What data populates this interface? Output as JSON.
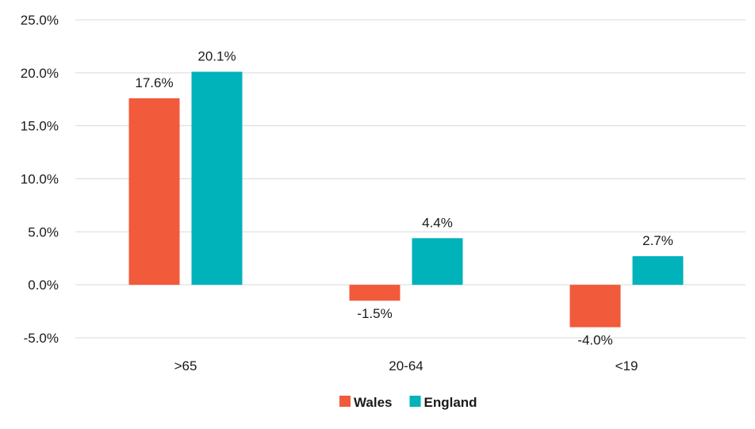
{
  "chart_data": {
    "type": "bar",
    "categories": [
      ">65",
      "20-64",
      "<19"
    ],
    "series": [
      {
        "name": "Wales",
        "values": [
          17.6,
          -1.5,
          -4.0
        ],
        "labels": [
          "17.6%",
          "-1.5%",
          "-4.0%"
        ],
        "color": "#F15A3A"
      },
      {
        "name": "England",
        "values": [
          20.1,
          4.4,
          2.7
        ],
        "labels": [
          "20.1%",
          "4.4%",
          "2.7%"
        ],
        "color": "#00B2BA"
      }
    ],
    "ylim": [
      -5,
      25
    ],
    "yticks": [
      -5,
      0,
      5,
      10,
      15,
      20,
      25
    ],
    "ytick_labels": [
      "-5.0%",
      "0.0%",
      "5.0%",
      "10.0%",
      "15.0%",
      "20.0%",
      "25.0%"
    ],
    "grid": true,
    "legend_position": "bottom-center",
    "title": "",
    "xlabel": "",
    "ylabel": ""
  }
}
